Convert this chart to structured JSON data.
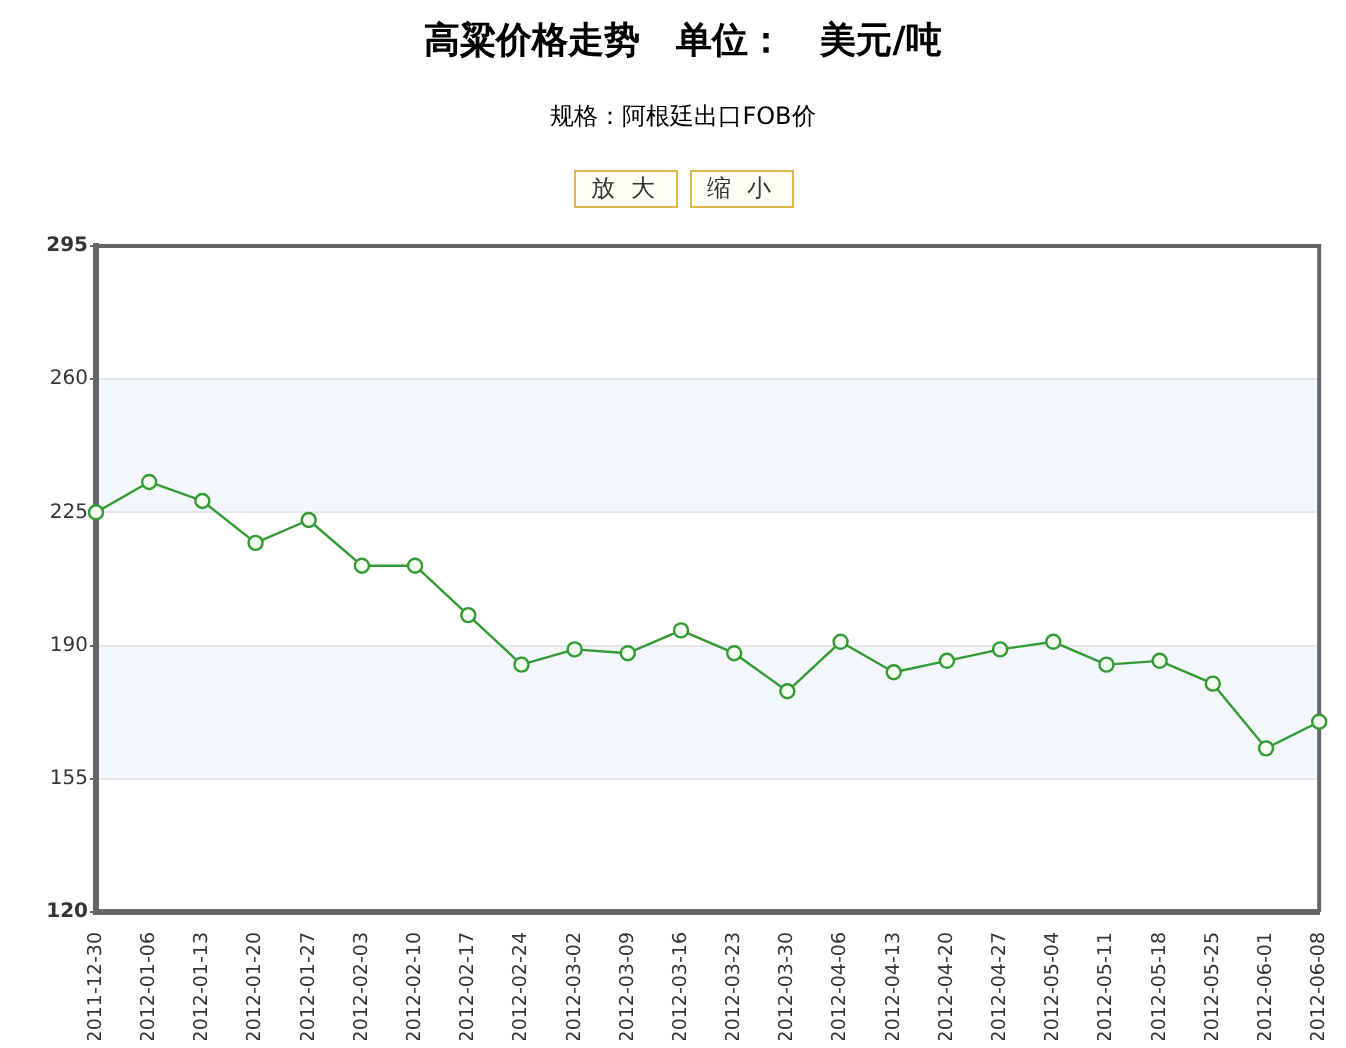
{
  "chart_data": {
    "type": "line",
    "title": "高粱价格走势　单位：　美元/吨",
    "subtitle": "规格：阿根廷出口FOB价",
    "annotations": [
      "放 大",
      "缩 小"
    ],
    "categories": [
      "2011-12-30",
      "2012-01-06",
      "2012-01-13",
      "2012-01-20",
      "2012-01-27",
      "2012-02-03",
      "2012-02-10",
      "2012-02-17",
      "2012-02-24",
      "2012-03-02",
      "2012-03-09",
      "2012-03-16",
      "2012-03-23",
      "2012-03-30",
      "2012-04-06",
      "2012-04-13",
      "2012-04-20",
      "2012-04-27",
      "2012-05-04",
      "2012-05-11",
      "2012-05-18",
      "2012-05-25",
      "2012-06-01",
      "2012-06-08"
    ],
    "series": [
      {
        "color": "#339933",
        "values": [
          225,
          233,
          228,
          217,
          223,
          211,
          211,
          198,
          185,
          189,
          188,
          194,
          188,
          178,
          191,
          183,
          186,
          189,
          191,
          185,
          186,
          180,
          163,
          170
        ]
      }
    ],
    "ylim": [
      120,
      295
    ],
    "yticks": [
      120,
      155,
      190,
      225,
      260,
      295
    ],
    "grid": "y",
    "bands": [
      {
        "axis": "y",
        "from": 155,
        "to": 190,
        "color": "#f3f7fc"
      },
      {
        "axis": "y",
        "from": 225,
        "to": 260,
        "color": "#f3f7fc"
      }
    ],
    "marker": "circle",
    "line_style": "solid"
  }
}
